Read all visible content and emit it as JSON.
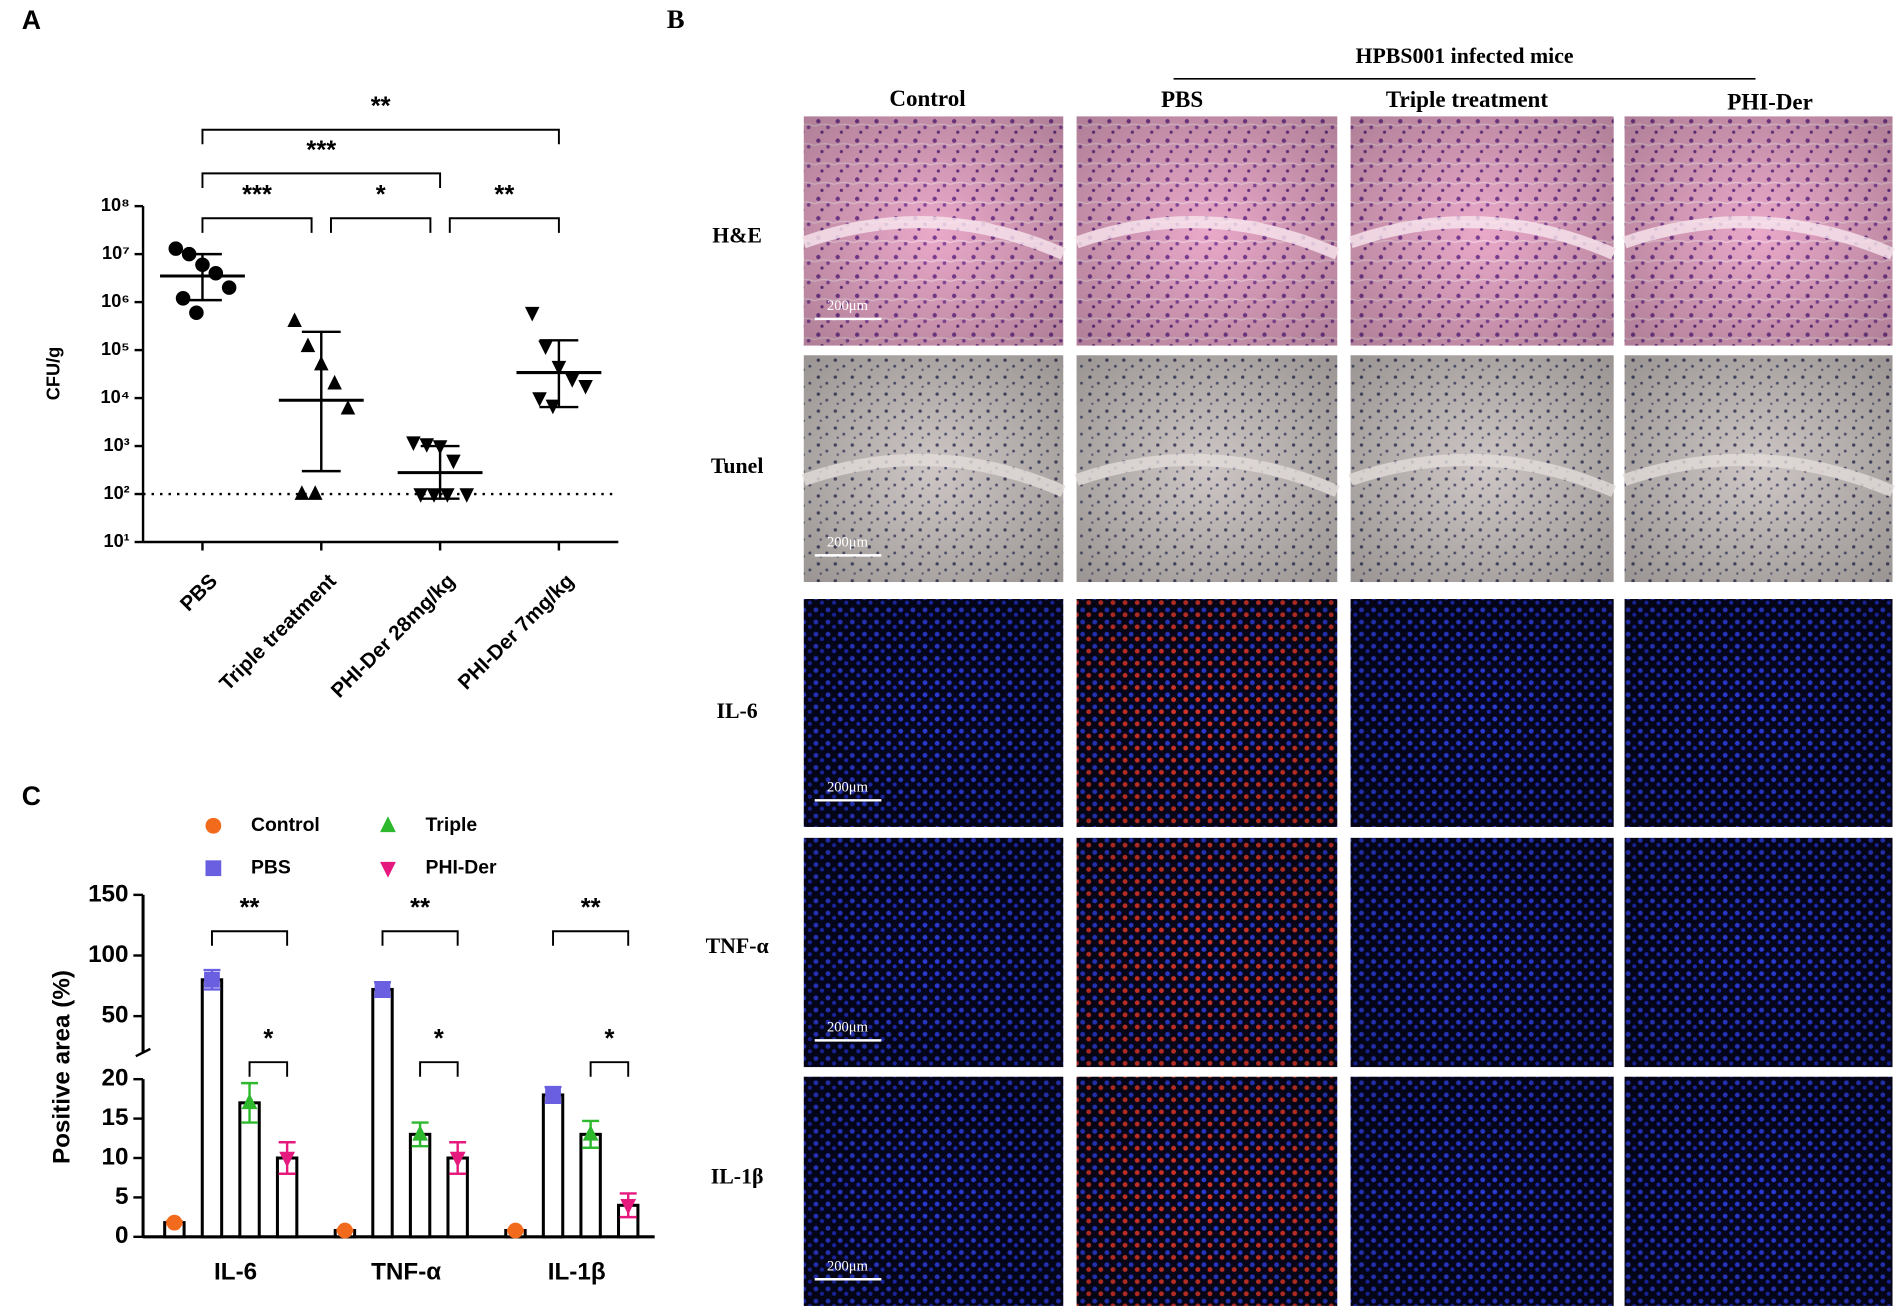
{
  "chart_data": [
    {
      "type": "scatter",
      "panel_label": "A",
      "y_label": "CFU/g",
      "log_scale": true,
      "categories": [
        "PBS",
        "Triple treatment",
        "PHI-Der 28mg/kg",
        "PHI-Der 7mg/kg"
      ],
      "markers": [
        "circle",
        "triangle-up",
        "triangle-down",
        "triangle-down"
      ],
      "color": "#000000",
      "points": [
        [
          13000000,
          10000000,
          6000000,
          4000000,
          2000000,
          1200000,
          600000
        ],
        [
          400000,
          120000,
          50000,
          20000,
          6000,
          100,
          100
        ],
        [
          1200,
          1100,
          1000,
          500,
          100,
          100,
          100,
          100
        ],
        [
          600000,
          120000,
          45000,
          25000,
          18000,
          10000,
          7000
        ]
      ],
      "mean": [
        3500000,
        9000,
        280,
        34000
      ],
      "sd_low": [
        1100000,
        300,
        80,
        6500
      ],
      "sd_high": [
        10000000,
        240000,
        1000,
        160000
      ],
      "reference_line": 100,
      "ylim": [
        10,
        100000000
      ],
      "yticks": [
        {
          "value": 10,
          "label": "10¹"
        },
        {
          "value": 100,
          "label": "10²"
        },
        {
          "value": 1000,
          "label": "10³"
        },
        {
          "value": 10000,
          "label": "10⁴"
        },
        {
          "value": 100000,
          "label": "10⁵"
        },
        {
          "value": 1000000,
          "label": "10⁶"
        },
        {
          "value": 10000000,
          "label": "10⁷"
        },
        {
          "value": 100000000,
          "label": "10⁸"
        }
      ],
      "annotations": [
        {
          "text": "***",
          "between": [
            0,
            1
          ]
        },
        {
          "text": "*",
          "between": [
            1,
            2
          ]
        },
        {
          "text": "**",
          "between": [
            2,
            3
          ]
        },
        {
          "text": "***",
          "between": [
            0,
            2
          ]
        },
        {
          "text": "**",
          "between": [
            0,
            3
          ]
        }
      ]
    },
    {
      "type": "bar",
      "panel_label": "C",
      "y_label": "Positive area (%)",
      "categories": [
        "IL-6",
        "TNF-α",
        "IL-1β"
      ],
      "series": [
        {
          "name": "Control",
          "color": "#f26b1d",
          "marker": "circle",
          "values": [
            1.8,
            0.8,
            0.8
          ],
          "errors": [
            0.2,
            0.1,
            0.1
          ]
        },
        {
          "name": "PBS",
          "color": "#6a5fe0",
          "marker": "square",
          "values": [
            80,
            72,
            18
          ],
          "errors": [
            8,
            6,
            1
          ]
        },
        {
          "name": "Triple",
          "color": "#2db82d",
          "marker": "triangle-up",
          "values": [
            17,
            13,
            13
          ],
          "errors": [
            2.5,
            1.5,
            1.7
          ]
        },
        {
          "name": "PHI-Der",
          "color": "#e6197f",
          "marker": "triangle-down",
          "values": [
            10,
            10,
            4
          ],
          "errors": [
            2,
            2,
            1.5
          ]
        }
      ],
      "ylim": [
        0,
        150
      ],
      "ybreak": 20,
      "yticks": [
        0,
        5,
        10,
        15,
        20,
        50,
        100,
        150
      ],
      "annotations": [
        {
          "text": "**",
          "category": 0,
          "between": [
            1,
            3
          ]
        },
        {
          "text": "*",
          "category": 0,
          "between": [
            2,
            3
          ]
        },
        {
          "text": "**",
          "category": 1,
          "between": [
            1,
            3
          ]
        },
        {
          "text": "*",
          "category": 1,
          "between": [
            2,
            3
          ]
        },
        {
          "text": "**",
          "category": 2,
          "between": [
            1,
            3
          ]
        },
        {
          "text": "*",
          "category": 2,
          "between": [
            2,
            3
          ]
        }
      ]
    }
  ],
  "panel_b": {
    "panel_label": "B",
    "header": "HPBS001 infected mice",
    "columns": [
      "Control",
      "PBS",
      "Triple treatment",
      "PHI-Der"
    ],
    "rows": [
      "H&E",
      "Tunel",
      "IL-6",
      "TNF-α",
      "IL-1β"
    ],
    "scale_bar_label": "200μm"
  }
}
